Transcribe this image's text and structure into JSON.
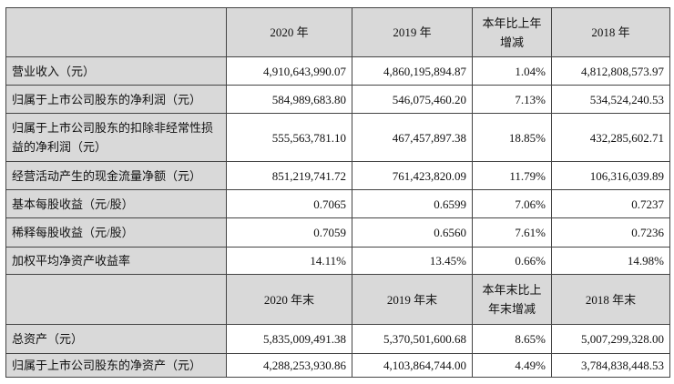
{
  "header1": [
    "",
    "2020 年",
    "2019 年",
    "本年比上年增减",
    "2018 年"
  ],
  "rows1": [
    {
      "label": "营业收入（元）",
      "values": [
        "4,910,643,990.07",
        "4,860,195,894.87",
        "1.04%",
        "4,812,808,573.97"
      ]
    },
    {
      "label": "归属于上市公司股东的净利润（元）",
      "values": [
        "584,989,683.80",
        "546,075,460.20",
        "7.13%",
        "534,524,240.53"
      ]
    },
    {
      "label": "归属于上市公司股东的扣除非经常性损益的净利润（元）",
      "values": [
        "555,563,781.10",
        "467,457,897.38",
        "18.85%",
        "432,285,602.71"
      ]
    },
    {
      "label": "经营活动产生的现金流量净额（元）",
      "values": [
        "851,219,741.72",
        "761,423,820.09",
        "11.79%",
        "106,316,039.89"
      ]
    },
    {
      "label": "基本每股收益（元/股）",
      "values": [
        "0.7065",
        "0.6599",
        "7.06%",
        "0.7237"
      ]
    },
    {
      "label": "稀释每股收益（元/股）",
      "values": [
        "0.7059",
        "0.6560",
        "7.61%",
        "0.7236"
      ]
    },
    {
      "label": "加权平均净资产收益率",
      "values": [
        "14.11%",
        "13.45%",
        "0.66%",
        "14.98%"
      ]
    }
  ],
  "header2": [
    "",
    "2020 年末",
    "2019 年末",
    "本年末比上年末增减",
    "2018 年末"
  ],
  "rows2": [
    {
      "label": "总资产（元）",
      "values": [
        "5,835,009,491.38",
        "5,370,501,600.68",
        "8.65%",
        "5,007,299,328.00"
      ]
    },
    {
      "label": "归属于上市公司股东的净资产（元）",
      "values": [
        "4,288,253,930.86",
        "4,103,864,744.00",
        "4.49%",
        "3,784,838,448.53"
      ]
    }
  ]
}
